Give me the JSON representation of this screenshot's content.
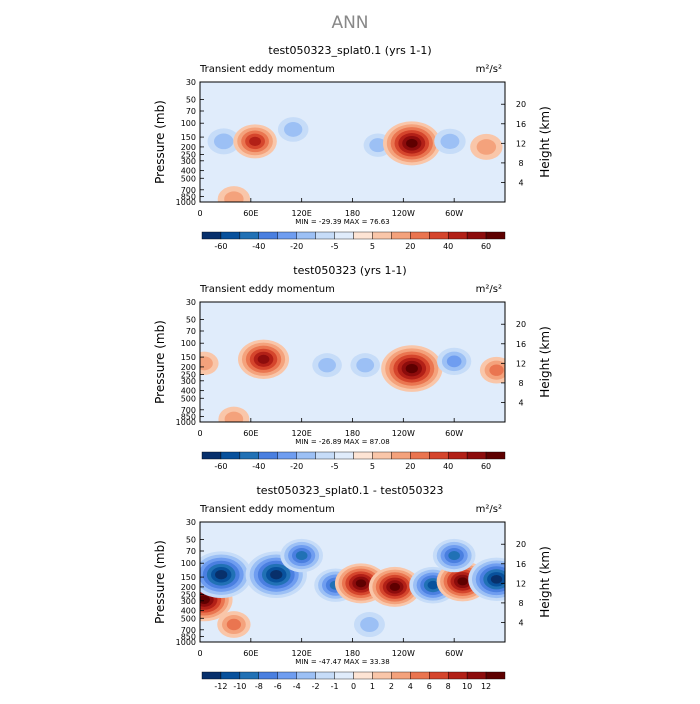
{
  "page": {
    "title": "ANN"
  },
  "chart_data": [
    {
      "type": "heatmap",
      "title": "test050323_splat0.1 (yrs 1-1)",
      "field_label": "Transient eddy momentum",
      "units": "m²/s²",
      "ylabel": "Pressure  (mb)",
      "ylabel_right": "Height  (km)",
      "xticks": [
        "0",
        "60E",
        "120E",
        "180",
        "120W",
        "60W"
      ],
      "xtick_lon": [
        0,
        60,
        120,
        180,
        240,
        300
      ],
      "xlim": [
        0,
        360
      ],
      "yticks": [
        "30",
        "50",
        "70",
        "100",
        "150",
        "200",
        "250",
        "300",
        "400",
        "500",
        "700",
        "850",
        "1000"
      ],
      "ytick_p": [
        30,
        50,
        70,
        100,
        150,
        200,
        250,
        300,
        400,
        500,
        700,
        850,
        1000
      ],
      "ylim": [
        1000,
        30
      ],
      "yticks_right": [
        "4",
        "8",
        "12",
        "16",
        "20"
      ],
      "ytick_right_km": [
        4,
        8,
        12,
        16,
        20
      ],
      "stats": "MIN = -29.39   MAX =  76.63",
      "min": -29.39,
      "max": 76.63,
      "colorbar": {
        "levels": [
          -60,
          -50,
          -40,
          -30,
          -20,
          -10,
          -5,
          0,
          5,
          10,
          20,
          30,
          40,
          50,
          60
        ],
        "labels": [
          "-60",
          "-40",
          "-20",
          "-5",
          "5",
          "20",
          "40",
          "60"
        ],
        "label_levels": [
          -60,
          -40,
          -20,
          -5,
          5,
          20,
          40,
          60
        ],
        "colors": [
          "#08306b",
          "#08519c",
          "#2171b5",
          "#4a7fe0",
          "#6f9df0",
          "#9cc0f5",
          "#c6dcf8",
          "#e0ecfb",
          "#fde4d4",
          "#f9c6a9",
          "#f4a27c",
          "#ea7550",
          "#d5452c",
          "#b22017",
          "#8c0c0c",
          "#5e0000"
        ]
      },
      "features": [
        {
          "lon": 28,
          "p": 170,
          "value": -18
        },
        {
          "lon": 65,
          "p": 170,
          "value": 42
        },
        {
          "lon": 110,
          "p": 120,
          "value": -14
        },
        {
          "lon": 210,
          "p": 190,
          "value": -10
        },
        {
          "lon": 250,
          "p": 180,
          "value": 72
        },
        {
          "lon": 295,
          "p": 170,
          "value": -16
        },
        {
          "lon": 338,
          "p": 200,
          "value": 18
        },
        {
          "lon": 40,
          "p": 920,
          "value": 18
        }
      ]
    },
    {
      "type": "heatmap",
      "title": "test050323 (yrs 1-1)",
      "field_label": "Transient eddy momentum",
      "units": "m²/s²",
      "ylabel": "Pressure  (mb)",
      "ylabel_right": "Height  (km)",
      "xticks": [
        "0",
        "60E",
        "120E",
        "180",
        "120W",
        "60W"
      ],
      "xtick_lon": [
        0,
        60,
        120,
        180,
        240,
        300
      ],
      "xlim": [
        0,
        360
      ],
      "yticks": [
        "30",
        "50",
        "70",
        "100",
        "150",
        "200",
        "250",
        "300",
        "400",
        "500",
        "700",
        "850",
        "1000"
      ],
      "ytick_p": [
        30,
        50,
        70,
        100,
        150,
        200,
        250,
        300,
        400,
        500,
        700,
        850,
        1000
      ],
      "ylim": [
        1000,
        30
      ],
      "yticks_right": [
        "4",
        "8",
        "12",
        "16",
        "20"
      ],
      "ytick_right_km": [
        4,
        8,
        12,
        16,
        20
      ],
      "stats": "MIN = -26.89   MAX =  87.08",
      "min": -26.89,
      "max": 87.08,
      "colorbar": {
        "levels": [
          -60,
          -50,
          -40,
          -30,
          -20,
          -10,
          -5,
          0,
          5,
          10,
          20,
          30,
          40,
          50,
          60
        ],
        "labels": [
          "-60",
          "-40",
          "-20",
          "-5",
          "5",
          "20",
          "40",
          "60"
        ],
        "label_levels": [
          -60,
          -40,
          -20,
          -5,
          5,
          20,
          40,
          60
        ],
        "colors": [
          "#08306b",
          "#08519c",
          "#2171b5",
          "#4a7fe0",
          "#6f9df0",
          "#9cc0f5",
          "#c6dcf8",
          "#e0ecfb",
          "#fde4d4",
          "#f9c6a9",
          "#f4a27c",
          "#ea7550",
          "#d5452c",
          "#b22017",
          "#8c0c0c",
          "#5e0000"
        ]
      },
      "features": [
        {
          "lon": 5,
          "p": 180,
          "value": 10
        },
        {
          "lon": 75,
          "p": 160,
          "value": 58
        },
        {
          "lon": 150,
          "p": 190,
          "value": -12
        },
        {
          "lon": 195,
          "p": 190,
          "value": -12
        },
        {
          "lon": 250,
          "p": 210,
          "value": 80
        },
        {
          "lon": 300,
          "p": 170,
          "value": -22
        },
        {
          "lon": 350,
          "p": 220,
          "value": 20
        },
        {
          "lon": 40,
          "p": 920,
          "value": 15
        }
      ]
    },
    {
      "type": "heatmap",
      "title": "test050323_splat0.1 - test050323",
      "field_label": "Transient eddy momentum",
      "units": "m²/s²",
      "ylabel": "Pressure  (mb)",
      "ylabel_right": "Height  (km)",
      "xticks": [
        "0",
        "60E",
        "120E",
        "180",
        "120W",
        "60W"
      ],
      "xtick_lon": [
        0,
        60,
        120,
        180,
        240,
        300
      ],
      "xlim": [
        0,
        360
      ],
      "yticks": [
        "30",
        "50",
        "70",
        "100",
        "150",
        "200",
        "250",
        "300",
        "400",
        "500",
        "700",
        "850",
        "1000"
      ],
      "ytick_p": [
        30,
        50,
        70,
        100,
        150,
        200,
        250,
        300,
        400,
        500,
        700,
        850,
        1000
      ],
      "ylim": [
        1000,
        30
      ],
      "yticks_right": [
        "4",
        "8",
        "12",
        "16",
        "20"
      ],
      "ytick_right_km": [
        4,
        8,
        12,
        16,
        20
      ],
      "stats": "MIN = -47.47   MAX =  33.38",
      "min": -47.47,
      "max": 33.38,
      "colorbar": {
        "levels": [
          -12,
          -10,
          -8,
          -6,
          -4,
          -2,
          -1,
          0,
          1,
          2,
          4,
          6,
          8,
          10,
          12
        ],
        "labels": [
          "-12",
          "-10",
          "-8",
          "-6",
          "-4",
          "-2",
          "-1",
          "0",
          "1",
          "2",
          "4",
          "6",
          "8",
          "10",
          "12"
        ],
        "label_levels": [
          -12,
          -10,
          -8,
          -6,
          -4,
          -2,
          -1,
          0,
          1,
          2,
          4,
          6,
          8,
          10,
          12
        ],
        "colors": [
          "#08306b",
          "#08519c",
          "#2171b5",
          "#4a7fe0",
          "#6f9df0",
          "#9cc0f5",
          "#c6dcf8",
          "#e0ecfb",
          "#fde4d4",
          "#f9c6a9",
          "#f4a27c",
          "#ea7550",
          "#d5452c",
          "#b22017",
          "#8c0c0c",
          "#5e0000"
        ]
      },
      "features": [
        {
          "lon": 5,
          "p": 290,
          "value": 14
        },
        {
          "lon": 25,
          "p": 140,
          "value": -16
        },
        {
          "lon": 90,
          "p": 140,
          "value": -16
        },
        {
          "lon": 160,
          "p": 190,
          "value": -8
        },
        {
          "lon": 190,
          "p": 180,
          "value": 12
        },
        {
          "lon": 230,
          "p": 200,
          "value": 12
        },
        {
          "lon": 275,
          "p": 190,
          "value": -10
        },
        {
          "lon": 310,
          "p": 170,
          "value": 12
        },
        {
          "lon": 350,
          "p": 160,
          "value": -14
        },
        {
          "lon": 120,
          "p": 80,
          "value": -8
        },
        {
          "lon": 300,
          "p": 80,
          "value": -8
        },
        {
          "lon": 40,
          "p": 600,
          "value": 4
        },
        {
          "lon": 200,
          "p": 600,
          "value": -3
        }
      ]
    }
  ]
}
